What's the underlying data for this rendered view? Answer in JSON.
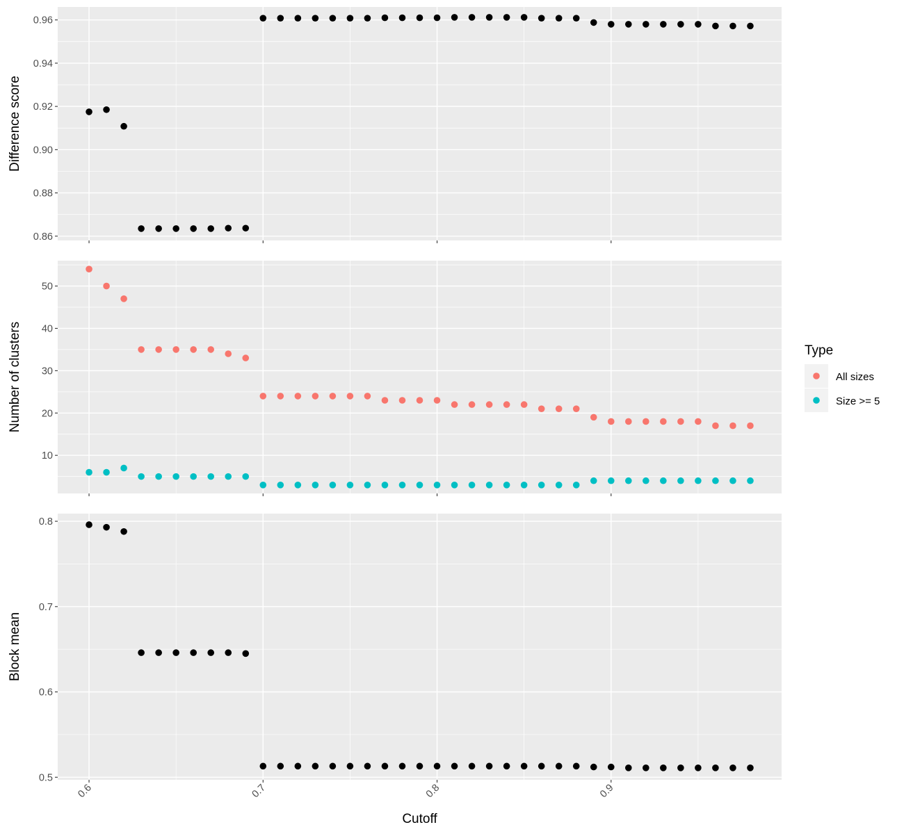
{
  "chart_data": [
    {
      "type": "scatter",
      "ylabel": "Difference score",
      "ylim": [
        0.858,
        0.966
      ],
      "yticks": [
        "0.86",
        "0.88",
        "0.90",
        "0.92",
        "0.94",
        "0.96"
      ],
      "grid": true,
      "series": [
        {
          "color": "#000000",
          "x": [
            0.6,
            0.61,
            0.62,
            0.63,
            0.64,
            0.65,
            0.66,
            0.67,
            0.68,
            0.69,
            0.7,
            0.71,
            0.72,
            0.73,
            0.74,
            0.75,
            0.76,
            0.77,
            0.78,
            0.79,
            0.8,
            0.81,
            0.82,
            0.83,
            0.84,
            0.85,
            0.86,
            0.87,
            0.88,
            0.89,
            0.9,
            0.91,
            0.92,
            0.93,
            0.94,
            0.95,
            0.96,
            0.97,
            0.98
          ],
          "y": [
            0.9175,
            0.9185,
            0.9108,
            0.8635,
            0.8635,
            0.8635,
            0.8635,
            0.8635,
            0.8637,
            0.8637,
            0.9608,
            0.9608,
            0.9608,
            0.9608,
            0.9608,
            0.9608,
            0.9608,
            0.961,
            0.961,
            0.961,
            0.961,
            0.9612,
            0.9612,
            0.9612,
            0.9612,
            0.9612,
            0.9608,
            0.9608,
            0.9608,
            0.9588,
            0.958,
            0.958,
            0.958,
            0.958,
            0.958,
            0.958,
            0.9572,
            0.9572,
            0.9572
          ]
        }
      ]
    },
    {
      "type": "scatter",
      "ylabel": "Number of clusters",
      "ylim": [
        1,
        56
      ],
      "yticks": [
        "10",
        "20",
        "30",
        "40",
        "50"
      ],
      "grid": true,
      "legend": {
        "title": "Type",
        "position": "right"
      },
      "series": [
        {
          "name": "All sizes",
          "color": "#F8766D",
          "x": [
            0.6,
            0.61,
            0.62,
            0.63,
            0.64,
            0.65,
            0.66,
            0.67,
            0.68,
            0.69,
            0.7,
            0.71,
            0.72,
            0.73,
            0.74,
            0.75,
            0.76,
            0.77,
            0.78,
            0.79,
            0.8,
            0.81,
            0.82,
            0.83,
            0.84,
            0.85,
            0.86,
            0.87,
            0.88,
            0.89,
            0.9,
            0.91,
            0.92,
            0.93,
            0.94,
            0.95,
            0.96,
            0.97,
            0.98
          ],
          "y": [
            54,
            50,
            47,
            35,
            35,
            35,
            35,
            35,
            34,
            33,
            24,
            24,
            24,
            24,
            24,
            24,
            24,
            23,
            23,
            23,
            23,
            22,
            22,
            22,
            22,
            22,
            21,
            21,
            21,
            19,
            18,
            18,
            18,
            18,
            18,
            18,
            17,
            17,
            17
          ]
        },
        {
          "name": "Size >= 5",
          "color": "#00BFC4",
          "x": [
            0.6,
            0.61,
            0.62,
            0.63,
            0.64,
            0.65,
            0.66,
            0.67,
            0.68,
            0.69,
            0.7,
            0.71,
            0.72,
            0.73,
            0.74,
            0.75,
            0.76,
            0.77,
            0.78,
            0.79,
            0.8,
            0.81,
            0.82,
            0.83,
            0.84,
            0.85,
            0.86,
            0.87,
            0.88,
            0.89,
            0.9,
            0.91,
            0.92,
            0.93,
            0.94,
            0.95,
            0.96,
            0.97,
            0.98
          ],
          "y": [
            6,
            6,
            7,
            5,
            5,
            5,
            5,
            5,
            5,
            5,
            3,
            3,
            3,
            3,
            3,
            3,
            3,
            3,
            3,
            3,
            3,
            3,
            3,
            3,
            3,
            3,
            3,
            3,
            3,
            4,
            4,
            4,
            4,
            4,
            4,
            4,
            4,
            4,
            4
          ]
        }
      ]
    },
    {
      "type": "scatter",
      "ylabel": "Block mean",
      "xlabel": "Cutoff",
      "ylim": [
        0.497,
        0.809
      ],
      "yticks": [
        "0.5",
        "0.6",
        "0.7",
        "0.8"
      ],
      "xlim": [
        0.582,
        0.998
      ],
      "xticks": [
        "0.6",
        "0.7",
        "0.8",
        "0.9"
      ],
      "grid": true,
      "series": [
        {
          "color": "#000000",
          "x": [
            0.6,
            0.61,
            0.62,
            0.63,
            0.64,
            0.65,
            0.66,
            0.67,
            0.68,
            0.69,
            0.7,
            0.71,
            0.72,
            0.73,
            0.74,
            0.75,
            0.76,
            0.77,
            0.78,
            0.79,
            0.8,
            0.81,
            0.82,
            0.83,
            0.84,
            0.85,
            0.86,
            0.87,
            0.88,
            0.89,
            0.9,
            0.91,
            0.92,
            0.93,
            0.94,
            0.95,
            0.96,
            0.97,
            0.98
          ],
          "y": [
            0.796,
            0.793,
            0.788,
            0.646,
            0.646,
            0.646,
            0.646,
            0.646,
            0.646,
            0.645,
            0.513,
            0.513,
            0.513,
            0.513,
            0.513,
            0.513,
            0.513,
            0.513,
            0.513,
            0.513,
            0.513,
            0.513,
            0.513,
            0.513,
            0.513,
            0.513,
            0.513,
            0.513,
            0.513,
            0.512,
            0.512,
            0.511,
            0.511,
            0.511,
            0.511,
            0.511,
            0.511,
            0.511,
            0.511
          ]
        }
      ]
    }
  ]
}
